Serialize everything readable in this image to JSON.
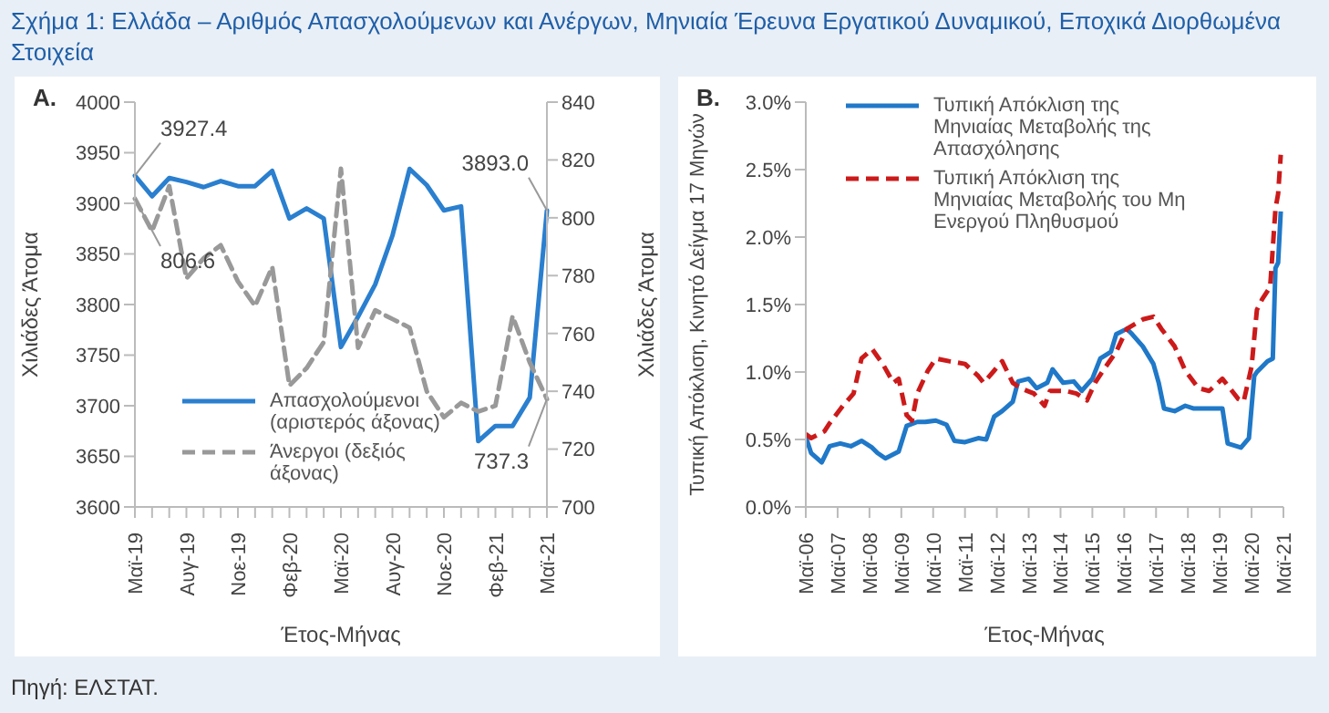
{
  "chart_data": [
    {
      "type": "line",
      "title": "Σχήμα 1: Ελλάδα – Αριθμός Απασχολούμενων και Ανέργων, Μηνιαία Έρευνα Εργατικού Δυναμικού, Εποχικά Διορθωμένα Στοιχεία",
      "subtitle": "A.",
      "xlabel": "Έτος-Μήνας",
      "ylabel": "Χιλιάδες Άτομα",
      "y2label": "Χιλιάδες Άτομα",
      "categories": [
        "Μαϊ-19",
        null,
        null,
        "Αυγ-19",
        null,
        null,
        "Νοε-19",
        null,
        null,
        "Φεβ-20",
        null,
        null,
        "Μαϊ-20",
        null,
        null,
        "Αυγ-20",
        null,
        null,
        "Νοε-20",
        null,
        null,
        "Φεβ-21",
        null,
        null,
        "Μαϊ-21"
      ],
      "series": [
        {
          "name": "Απασχολούμενοι (αριστερός άξονας)",
          "color": "#2a7fcf",
          "line_style": "solid",
          "values": [
            3927.4,
            3907,
            3925,
            3921,
            3916,
            3922,
            3917,
            3917,
            3932,
            3885,
            3895,
            3885,
            3758,
            3788,
            3820,
            3868,
            3934,
            3918,
            3893,
            3897,
            3665,
            3680,
            3680,
            3708,
            3893.0
          ],
          "value_labels": [
            "3927.4",
            null,
            null,
            null,
            null,
            null,
            null,
            null,
            null,
            null,
            null,
            null,
            null,
            null,
            null,
            null,
            null,
            null,
            null,
            null,
            null,
            null,
            null,
            null,
            "3893.0"
          ]
        },
        {
          "name": "Άνεργοι (δεξιός άξονας)",
          "color": "#999999",
          "line_style": "dashed",
          "axis": "y2",
          "values": [
            806.6,
            795.4,
            811,
            779,
            786,
            790.5,
            778,
            769.5,
            783,
            742,
            748,
            757,
            817,
            755,
            768,
            765,
            762,
            740,
            731,
            736,
            733,
            735,
            766,
            750,
            737.3
          ],
          "value_labels": [
            "806.6",
            null,
            null,
            null,
            null,
            null,
            null,
            null,
            null,
            null,
            null,
            null,
            null,
            null,
            null,
            null,
            null,
            null,
            null,
            null,
            null,
            null,
            null,
            null,
            "737.3"
          ]
        }
      ],
      "ylim": [
        3600,
        4000
      ],
      "yticks": [
        3600,
        3650,
        3700,
        3750,
        3800,
        3850,
        3900,
        3950,
        4000
      ],
      "y2lim": [
        700,
        840
      ],
      "y2ticks": [
        700,
        720,
        740,
        760,
        780,
        800,
        820,
        840
      ],
      "grid": false,
      "legend": "bottom",
      "marker": "none"
    },
    {
      "type": "line",
      "title": "B.",
      "xlabel": "Έτος-Μήνας",
      "ylabel": "Τυπική Απόκλιση, Κινητό Δείγμα 17 Μηνών",
      "series": [
        {
          "name": "Τυπική Απόκλιση της Μηνιαίας Μεταβολής της Απασχόλησης",
          "color": "#1f78c8",
          "line_style": "solid",
          "x": [
            "2006-05",
            "2006-07",
            "2006-11",
            "2007-02",
            "2007-06",
            "2007-10",
            "2008-02",
            "2008-06",
            "2008-08",
            "2008-11",
            "2009-01",
            "2009-04",
            "2009-07",
            "2009-11",
            "2010-02",
            "2010-06",
            "2010-10",
            "2011-01",
            "2011-05",
            "2011-10",
            "2012-01",
            "2012-04",
            "2012-07",
            "2012-11",
            "2013-01",
            "2013-05",
            "2013-08",
            "2013-12",
            "2014-02",
            "2014-06",
            "2014-10",
            "2015-01",
            "2015-05",
            "2015-08",
            "2015-12",
            "2016-02",
            "2016-06",
            "2016-08",
            "2016-12",
            "2017-04",
            "2017-06",
            "2017-08",
            "2017-12",
            "2018-04",
            "2018-07",
            "2018-11",
            "2019-04",
            "2019-06",
            "2019-08",
            "2020-01",
            "2020-04",
            "2020-06",
            "2020-07",
            "2020-11",
            "2021-01",
            "2021-02",
            "2021-03",
            "2021-04"
          ],
          "values": [
            0.52,
            0.4,
            0.33,
            0.45,
            0.47,
            0.45,
            0.49,
            0.44,
            0.4,
            0.36,
            0.38,
            0.41,
            0.6,
            0.63,
            0.63,
            0.64,
            0.61,
            0.49,
            0.48,
            0.51,
            0.5,
            0.67,
            0.71,
            0.78,
            0.93,
            0.95,
            0.88,
            0.92,
            1.02,
            0.92,
            0.93,
            0.86,
            0.95,
            1.1,
            1.15,
            1.28,
            1.32,
            1.28,
            1.19,
            1.06,
            0.92,
            0.73,
            0.71,
            0.75,
            0.73,
            0.73,
            0.73,
            0.73,
            0.47,
            0.44,
            0.51,
            0.97,
            1.0,
            1.08,
            1.1,
            1.77,
            1.81,
            2.19
          ]
        },
        {
          "name": "Τυπική Απόκλιση της Μηνιαίας Μεταβολής του Μη Ενεργού Πληθυσμού",
          "color": "#cc1a1a",
          "line_style": "dashed",
          "x": [
            "2006-05",
            "2006-07",
            "2006-12",
            "2007-02",
            "2007-07",
            "2007-11",
            "2008-02",
            "2008-06",
            "2008-10",
            "2009-02",
            "2009-04",
            "2009-07",
            "2009-09",
            "2009-11",
            "2010-03",
            "2010-06",
            "2010-11",
            "2011-05",
            "2011-10",
            "2011-12",
            "2012-04",
            "2012-07",
            "2012-11",
            "2013-02",
            "2013-07",
            "2013-11",
            "2014-01",
            "2014-07",
            "2014-11",
            "2015-03",
            "2015-06",
            "2015-09",
            "2016-02",
            "2016-06",
            "2016-12",
            "2017-04",
            "2017-07",
            "2017-12",
            "2018-04",
            "2018-09",
            "2019-01",
            "2019-06",
            "2019-12",
            "2020-02",
            "2020-05",
            "2020-07",
            "2020-09",
            "2020-12",
            "2021-02",
            "2021-03",
            "2021-04"
          ],
          "values": [
            0.54,
            0.51,
            0.56,
            0.62,
            0.75,
            0.84,
            1.1,
            1.17,
            1.06,
            0.92,
            0.95,
            0.68,
            0.64,
            0.84,
            1.01,
            1.1,
            1.08,
            1.06,
            0.97,
            0.92,
            1.01,
            1.08,
            0.92,
            0.88,
            0.84,
            0.75,
            0.86,
            0.86,
            0.84,
            0.79,
            0.92,
            1.01,
            1.15,
            1.32,
            1.39,
            1.41,
            1.32,
            1.19,
            1.01,
            0.88,
            0.86,
            0.95,
            0.8,
            0.78,
            1.04,
            1.46,
            1.54,
            1.63,
            2.21,
            2.32,
            2.61
          ]
        }
      ],
      "xlim": [
        "2006-05",
        "2021-05"
      ],
      "xticks": [
        {
          "value": "2006-05",
          "label": "Μαϊ-06"
        },
        {
          "value": "2007-05",
          "label": "Μαϊ-07"
        },
        {
          "value": "2008-05",
          "label": "Μαϊ-08"
        },
        {
          "value": "2009-05",
          "label": "Μαϊ-09"
        },
        {
          "value": "2010-05",
          "label": "Μαϊ-10"
        },
        {
          "value": "2011-05",
          "label": "Μαϊ-11"
        },
        {
          "value": "2012-05",
          "label": "Μαϊ-12"
        },
        {
          "value": "2013-05",
          "label": "Μαϊ-13"
        },
        {
          "value": "2014-05",
          "label": "Μαϊ-14"
        },
        {
          "value": "2015-05",
          "label": "Μαϊ-15"
        },
        {
          "value": "2016-05",
          "label": "Μαϊ-16"
        },
        {
          "value": "2017-05",
          "label": "Μαϊ-17"
        },
        {
          "value": "2018-05",
          "label": "Μαϊ-18"
        },
        {
          "value": "2019-05",
          "label": "Μαϊ-19"
        },
        {
          "value": "2020-05",
          "label": "Μαϊ-20"
        },
        {
          "value": "2021-05",
          "label": "Μαϊ-21"
        }
      ],
      "ylim": [
        0,
        3
      ],
      "yticks": [
        {
          "value": 0,
          "label": "0.0%"
        },
        {
          "value": 0.5,
          "label": "0.5%"
        },
        {
          "value": 1,
          "label": "1.0%"
        },
        {
          "value": 1.5,
          "label": "1.5%"
        },
        {
          "value": 2,
          "label": "2.0%"
        },
        {
          "value": 2.5,
          "label": "2.5%"
        },
        {
          "value": 3,
          "label": "3.0%"
        }
      ],
      "grid": false,
      "legend": "top left",
      "marker": "none",
      "annotations": [
        "Πηγή: ΕΛΣΤΑΤ."
      ]
    }
  ]
}
